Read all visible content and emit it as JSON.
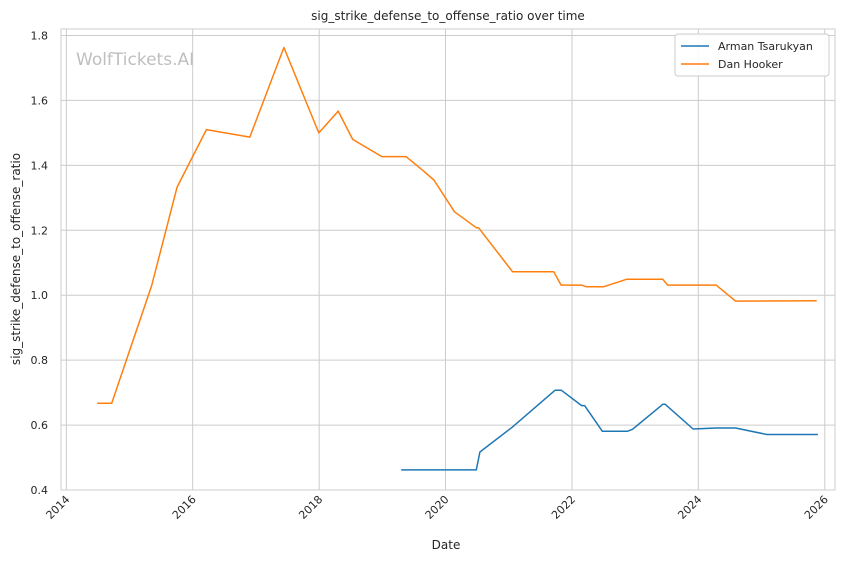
{
  "watermark": "WolfTickets.AI",
  "chart_data": {
    "type": "line",
    "title": "sig_strike_defense_to_offense_ratio over time",
    "xlabel": "Date",
    "ylabel": "sig_strike_defense_to_offense_ratio",
    "x_is_date": true,
    "xlim": [
      "2013-12-01",
      "2026-03-01"
    ],
    "ylim": [
      0.4,
      1.82
    ],
    "x_ticks": [
      "2014",
      "2016",
      "2018",
      "2020",
      "2022",
      "2024",
      "2026"
    ],
    "y_ticks": [
      "0.4",
      "0.6",
      "0.8",
      "1.0",
      "1.2",
      "1.4",
      "1.6",
      "1.8"
    ],
    "grid": true,
    "legend_position": "top-right",
    "series": [
      {
        "name": "Arman Tsarukyan",
        "color": "#1f77b4",
        "points": [
          [
            "2019-04-20",
            0.462
          ],
          [
            "2020-06-27",
            0.462
          ],
          [
            "2020-07-18",
            0.517
          ],
          [
            "2021-01-20",
            0.593
          ],
          [
            "2021-09-25",
            0.707
          ],
          [
            "2021-11-01",
            0.707
          ],
          [
            "2022-02-26",
            0.66
          ],
          [
            "2022-03-15",
            0.66
          ],
          [
            "2022-06-25",
            0.581
          ],
          [
            "2022-11-19",
            0.581
          ],
          [
            "2022-12-17",
            0.587
          ],
          [
            "2023-06-10",
            0.664
          ],
          [
            "2023-06-24",
            0.664
          ],
          [
            "2023-12-02",
            0.588
          ],
          [
            "2024-04-13",
            0.591
          ],
          [
            "2024-08-03",
            0.591
          ],
          [
            "2025-02-01",
            0.571
          ],
          [
            "2025-11-22",
            0.571
          ]
        ]
      },
      {
        "name": "Dan Hooker",
        "color": "#ff7f0e",
        "points": [
          [
            "2014-06-28",
            0.667
          ],
          [
            "2014-09-20",
            0.667
          ],
          [
            "2015-05-09",
            1.03
          ],
          [
            "2015-10-03",
            1.333
          ],
          [
            "2016-03-20",
            1.51
          ],
          [
            "2016-11-26",
            1.487
          ],
          [
            "2017-06-11",
            1.763
          ],
          [
            "2017-12-30",
            1.5
          ],
          [
            "2018-04-21",
            1.567
          ],
          [
            "2018-07-14",
            1.48
          ],
          [
            "2018-12-29",
            1.427
          ],
          [
            "2019-05-18",
            1.427
          ],
          [
            "2019-08-17",
            1.387
          ],
          [
            "2019-10-26",
            1.355
          ],
          [
            "2020-02-22",
            1.257
          ],
          [
            "2020-06-27",
            1.208
          ],
          [
            "2020-07-10",
            1.208
          ],
          [
            "2021-01-23",
            1.072
          ],
          [
            "2021-09-18",
            1.072
          ],
          [
            "2021-10-30",
            1.031
          ],
          [
            "2022-02-26",
            1.031
          ],
          [
            "2022-03-26",
            1.026
          ],
          [
            "2022-07-02",
            1.026
          ],
          [
            "2022-11-12",
            1.049
          ],
          [
            "2023-06-10",
            1.049
          ],
          [
            "2023-07-08",
            1.031
          ],
          [
            "2024-04-13",
            1.031
          ],
          [
            "2024-08-03",
            0.982
          ],
          [
            "2025-11-15",
            0.983
          ]
        ]
      }
    ]
  }
}
